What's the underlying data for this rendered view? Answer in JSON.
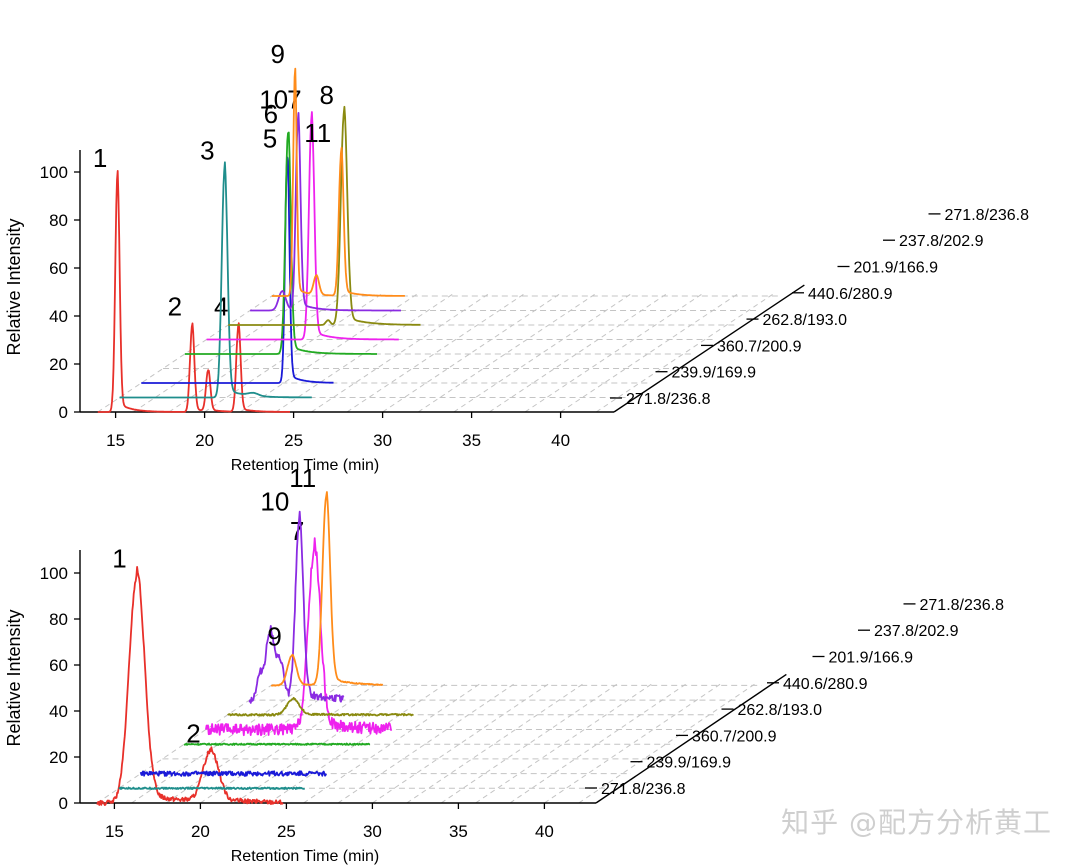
{
  "chart_data": [
    {
      "type": "line",
      "subtype": "3d-stacked-chromatogram",
      "title": "",
      "xlabel": "Retention Time (min)",
      "ylabel": "Relative Intensity",
      "xlim": [
        13,
        43
      ],
      "ylim": [
        0,
        110
      ],
      "xticks": [
        "15",
        "20",
        "25",
        "30",
        "35",
        "40"
      ],
      "yticks": [
        "0",
        "20",
        "40",
        "60",
        "80",
        "100"
      ],
      "depth_labels": [
        "271.8/236.8",
        "239.9/169.9",
        "360.7/200.9",
        "262.8/193.0",
        "440.6/280.9",
        "201.9/166.9",
        "237.8/202.9",
        "271.8/236.8"
      ],
      "series": [
        {
          "name": "271.8/236.8",
          "color": "#e8302a",
          "depth": 0,
          "x_range": [
            14,
            24.8
          ],
          "peaks": [
            {
              "x": 15.1,
              "height": 98,
              "width": 0.12,
              "label": "1"
            },
            {
              "x": 19.3,
              "height": 36,
              "width": 0.12,
              "label": "2"
            },
            {
              "x": 20.2,
              "height": 17,
              "width": 0.12,
              "label": ""
            },
            {
              "x": 21.9,
              "height": 36,
              "width": 0.12,
              "label": "4"
            }
          ],
          "noise": 0
        },
        {
          "name": "239.9/169.9",
          "color": "#1f8e8c",
          "depth": 1,
          "x_range": [
            14,
            24.8
          ],
          "peaks": [
            {
              "x": 19.9,
              "height": 95,
              "width": 0.16,
              "label": "3"
            },
            {
              "x": 21.5,
              "height": 1.2,
              "width": 0.3,
              "label": ""
            }
          ],
          "noise": 0
        },
        {
          "name": "360.7/200.9",
          "color": "#1a1ad8",
          "depth": 2,
          "x_range": [
            14,
            24.8
          ],
          "peaks": [
            {
              "x": 22.2,
              "height": 94,
              "width": 0.12,
              "label": "5"
            }
          ],
          "noise": 0
        },
        {
          "name": "262.8/193.0",
          "color": "#22aa22",
          "depth": 4,
          "x_range": [
            14,
            24.8
          ],
          "peaks": [
            {
              "x": 19.8,
              "height": 92,
              "width": 0.15,
              "label": "6"
            }
          ],
          "noise": 0
        },
        {
          "name": "440.6/280.9",
          "color": "#ee22ee",
          "depth": 5,
          "x_range": [
            14,
            24.8
          ],
          "peaks": [
            {
              "x": 19.9,
              "height": 92,
              "width": 0.15,
              "label": "7"
            }
          ],
          "noise": 0
        },
        {
          "name": "201.9/166.9",
          "color": "#8a8a10",
          "depth": 6,
          "x_range": [
            14,
            24.8
          ],
          "peaks": [
            {
              "x": 20.5,
              "height": 88,
              "width": 0.18,
              "label": "8"
            },
            {
              "x": 19.6,
              "height": 2,
              "width": 0.12,
              "label": ""
            }
          ],
          "noise": 0
        },
        {
          "name": "237.8/202.9",
          "color": "#8a2be2",
          "depth": 7,
          "x_range": [
            14,
            22.5
          ],
          "peaks": [
            {
              "x": 15.8,
              "height": 8,
              "width": 0.2,
              "label": ""
            },
            {
              "x": 16.7,
              "height": 80,
              "width": 0.13,
              "label": "10"
            }
          ],
          "noise": 0
        },
        {
          "name": "271.8/236.8",
          "color": "#ff8c1a",
          "depth": 8,
          "x_range": [
            14,
            21.5
          ],
          "peaks": [
            {
              "x": 15.3,
              "height": 93,
              "width": 0.1,
              "label": "9"
            },
            {
              "x": 16.5,
              "height": 8,
              "width": 0.15,
              "label": ""
            },
            {
              "x": 17.9,
              "height": 60,
              "width": 0.13,
              "label": "11"
            }
          ],
          "noise": 0
        }
      ]
    },
    {
      "type": "line",
      "subtype": "3d-stacked-chromatogram",
      "title": "",
      "xlabel": "Retention Time (min)",
      "ylabel": "Relative Intensity",
      "xlim": [
        13,
        43
      ],
      "ylim": [
        0,
        110
      ],
      "xticks": [
        "15",
        "20",
        "25",
        "30",
        "35",
        "40"
      ],
      "yticks": [
        "0",
        "20",
        "40",
        "60",
        "80",
        "100"
      ],
      "depth_labels": [
        "271.8/236.8",
        "239.9/169.9",
        "360.7/200.9",
        "262.8/193.0",
        "440.6/280.9",
        "201.9/166.9",
        "237.8/202.9",
        "271.8/236.8"
      ],
      "series": [
        {
          "name": "271.8/236.8",
          "color": "#e8302a",
          "depth": 0,
          "x_range": [
            14,
            24.8
          ],
          "peaks": [
            {
              "x": 16.3,
              "height": 98,
              "width": 0.45,
              "label": "1"
            },
            {
              "x": 20.6,
              "height": 22,
              "width": 0.45,
              "label": "2"
            }
          ],
          "noise": 1.0
        },
        {
          "name": "239.9/169.9",
          "color": "#1f8e8c",
          "depth": 1,
          "x_range": [
            14,
            24.8
          ],
          "peaks": [],
          "noise": 0.35
        },
        {
          "name": "360.7/200.9",
          "color": "#1a1ad8",
          "depth": 2,
          "x_range": [
            14,
            24.8
          ],
          "peaks": [],
          "noise": 1.0
        },
        {
          "name": "262.8/193.0",
          "color": "#22aa22",
          "depth": 4,
          "x_range": [
            14,
            24.8
          ],
          "peaks": [],
          "noise": 0.3
        },
        {
          "name": "440.6/280.9",
          "color": "#ee22ee",
          "depth": 5,
          "x_range": [
            14,
            24.8
          ],
          "peaks": [
            {
              "x": 20.3,
              "height": 78,
              "width": 0.35,
              "label": "7"
            }
          ],
          "noise": 2.5
        },
        {
          "name": "201.9/166.9",
          "color": "#8a8a10",
          "depth": 6,
          "x_range": [
            14,
            24.8
          ],
          "peaks": [
            {
              "x": 17.8,
              "height": 7,
              "width": 0.35,
              "label": ""
            }
          ],
          "noise": 0.4
        },
        {
          "name": "237.8/202.9",
          "color": "#8a2be2",
          "depth": 7,
          "x_range": [
            14,
            19.5
          ],
          "peaks": [
            {
              "x": 14.6,
              "height": 10,
              "width": 0.18,
              "label": ""
            },
            {
              "x": 15.2,
              "height": 30,
              "width": 0.25,
              "label": ""
            },
            {
              "x": 15.8,
              "height": 15,
              "width": 0.2,
              "label": ""
            },
            {
              "x": 16.9,
              "height": 78,
              "width": 0.22,
              "label": "10"
            }
          ],
          "noise": 1.5
        },
        {
          "name": "271.8/236.8",
          "color": "#ff8c1a",
          "depth": 8,
          "x_range": [
            14,
            20.5
          ],
          "peaks": [
            {
              "x": 15.2,
              "height": 13,
              "width": 0.25,
              "label": "9"
            },
            {
              "x": 17.2,
              "height": 82,
              "width": 0.22,
              "label": "11"
            }
          ],
          "noise": 0.2
        }
      ]
    }
  ],
  "watermark": "知乎 @配方分析黄工"
}
